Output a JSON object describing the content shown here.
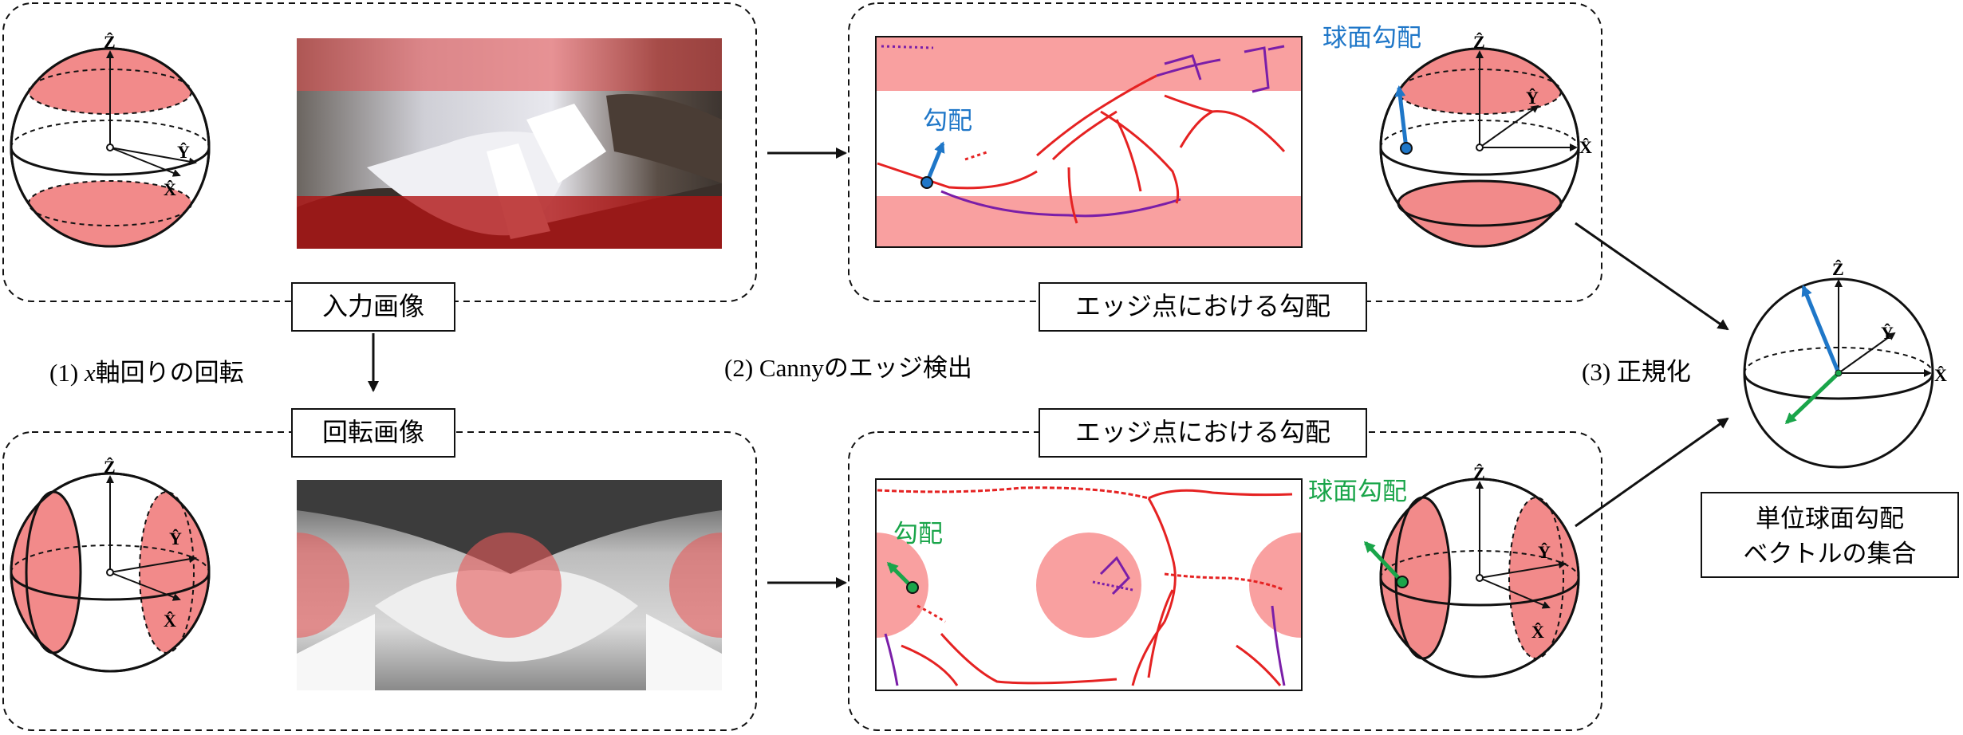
{
  "colors": {
    "band_red": "#f28a8a",
    "edge_red": "#e52222",
    "edge_purple": "#7a1ea8",
    "arrow_blue": "#1f77c8",
    "arrow_green": "#1aa54a",
    "frame": "#111111"
  },
  "labels": {
    "input_image": "入力画像",
    "rotated_image": "回転画像",
    "gradient_top": "エッジ点における勾配",
    "gradient_bottom": "エッジ点における勾配",
    "result": [
      "単位球面勾配",
      "ベクトルの集合"
    ]
  },
  "steps": {
    "step1_prefix": "(1) ",
    "step1_var": "x",
    "step1_suffix": "軸回りの回転",
    "step2": "(2) Cannyのエッジ検出",
    "step3": "(3) 正規化"
  },
  "annotations": {
    "gradient_blue": "勾配",
    "sphere_gradient_blue": "球面勾配",
    "gradient_green": "勾配",
    "sphere_gradient_green": "球面勾配"
  },
  "axes": {
    "x": "X̂",
    "y": "Ŷ",
    "z": "Ẑ"
  },
  "icons": {
    "arrow": "arrow-icon",
    "sphere": "sphere-icon"
  }
}
